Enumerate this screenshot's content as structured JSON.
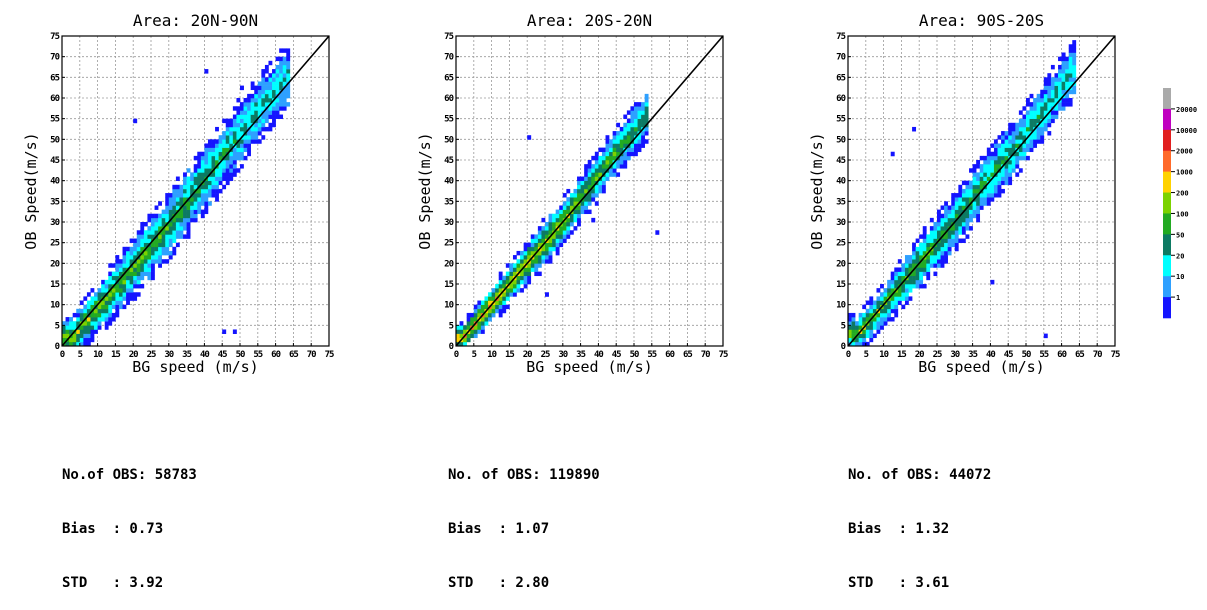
{
  "chart_data": [
    {
      "type": "heatmap",
      "title": "Area: 20N-90N",
      "xlabel": "BG speed (m/s)",
      "ylabel": "OB Speed(m/s)",
      "xlim": [
        0,
        75
      ],
      "ylim": [
        0,
        75
      ],
      "x_ticks": [
        "0",
        "5",
        "10",
        "15",
        "20",
        "25",
        "30",
        "35",
        "40",
        "45",
        "50",
        "55",
        "60",
        "65",
        "70",
        "75"
      ],
      "y_ticks": [
        "0",
        "5",
        "10",
        "15",
        "20",
        "25",
        "30",
        "35",
        "40",
        "45",
        "50",
        "55",
        "60",
        "65",
        "70",
        "75"
      ],
      "grid": true,
      "diagonal": "1:1 line",
      "density_core": [
        [
          3,
          2
        ],
        [
          8,
          7
        ],
        [
          15,
          14
        ],
        [
          22,
          21
        ],
        [
          30,
          29
        ],
        [
          38,
          38
        ],
        [
          46,
          47
        ],
        [
          54,
          56
        ],
        [
          60,
          62
        ]
      ],
      "spread": 7,
      "peak_level": 5,
      "outliers": [
        [
          45,
          3
        ],
        [
          48,
          3
        ],
        [
          40,
          66
        ],
        [
          20,
          54
        ],
        [
          50,
          62
        ]
      ],
      "stats": {
        "obs_label": "No.of OBS: 58783",
        "bias_label": "Bias  : 0.73",
        "std_label": "STD   : 3.92"
      }
    },
    {
      "type": "heatmap",
      "title": "Area: 20S-20N",
      "xlabel": "BG speed (m/s)",
      "ylabel": "OB Speed(m/s)",
      "xlim": [
        0,
        75
      ],
      "ylim": [
        0,
        75
      ],
      "x_ticks": [
        "0",
        "5",
        "10",
        "15",
        "20",
        "25",
        "30",
        "35",
        "40",
        "45",
        "50",
        "55",
        "60",
        "65",
        "70",
        "75"
      ],
      "y_ticks": [
        "0",
        "5",
        "10",
        "15",
        "20",
        "25",
        "30",
        "35",
        "40",
        "45",
        "50",
        "55",
        "60",
        "65",
        "70",
        "75"
      ],
      "grid": true,
      "diagonal": "1:1 line",
      "density_core": [
        [
          2,
          2
        ],
        [
          6,
          6
        ],
        [
          10,
          10
        ],
        [
          15,
          15
        ],
        [
          22,
          22
        ],
        [
          30,
          30
        ],
        [
          38,
          39
        ],
        [
          44,
          46
        ],
        [
          50,
          52
        ]
      ],
      "spread": 5,
      "peak_level": 7,
      "outliers": [
        [
          20,
          50
        ],
        [
          25,
          12
        ],
        [
          38,
          30
        ],
        [
          56,
          27
        ]
      ],
      "stats": {
        "obs_label": "No. of OBS: 119890",
        "bias_label": "Bias  : 1.07",
        "std_label": "STD   : 2.80"
      }
    },
    {
      "type": "heatmap",
      "title": "Area: 90S-20S",
      "xlabel": "BG speed (m/s)",
      "ylabel": "OB Speed(m/s)",
      "xlim": [
        0,
        75
      ],
      "ylim": [
        0,
        75
      ],
      "x_ticks": [
        "0",
        "5",
        "10",
        "15",
        "20",
        "25",
        "30",
        "35",
        "40",
        "45",
        "50",
        "55",
        "60",
        "65",
        "70",
        "75"
      ],
      "y_ticks": [
        "0",
        "5",
        "10",
        "15",
        "20",
        "25",
        "30",
        "35",
        "40",
        "45",
        "50",
        "55",
        "60",
        "65",
        "70",
        "75"
      ],
      "grid": true,
      "diagonal": "1:1 line",
      "density_core": [
        [
          3,
          3
        ],
        [
          8,
          8
        ],
        [
          15,
          15
        ],
        [
          22,
          22
        ],
        [
          30,
          30
        ],
        [
          38,
          39
        ],
        [
          46,
          47
        ],
        [
          54,
          56
        ],
        [
          60,
          63
        ]
      ],
      "spread": 6,
      "peak_level": 5,
      "outliers": [
        [
          55,
          2
        ],
        [
          18,
          52
        ],
        [
          40,
          15
        ],
        [
          60,
          70
        ],
        [
          12,
          46
        ]
      ],
      "stats": {
        "obs_label": "No. of OBS: 44072",
        "bias_label": "Bias  : 1.32",
        "std_label": "STD   : 3.61"
      }
    }
  ],
  "colorbar": {
    "levels": [
      "1",
      "10",
      "20",
      "50",
      "100",
      "200",
      "1000",
      "2000",
      "10000",
      "20000"
    ],
    "colors": [
      "#1414ff",
      "#2ea0ff",
      "#00ffff",
      "#0d7a63",
      "#22aa22",
      "#7cd200",
      "#ffd200",
      "#ff6a2a",
      "#e11f1f",
      "#c000c0",
      "#aaaaaa"
    ]
  }
}
